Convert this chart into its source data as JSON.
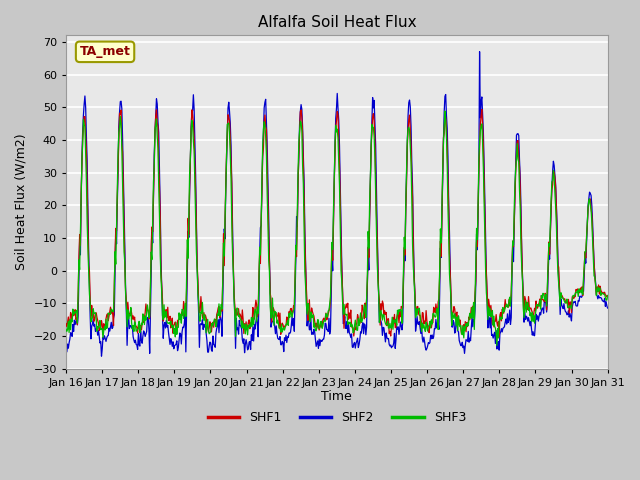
{
  "title": "Alfalfa Soil Heat Flux",
  "ylabel": "Soil Heat Flux (W/m2)",
  "xlabel": "Time",
  "ylim": [
    -30,
    72
  ],
  "yticks": [
    -30,
    -20,
    -10,
    0,
    10,
    20,
    30,
    40,
    50,
    60,
    70
  ],
  "colors": {
    "SHF1": "#cc0000",
    "SHF2": "#0000cc",
    "SHF3": "#00bb00"
  },
  "annotation_text": "TA_met",
  "n_days": 15,
  "start_day": 16,
  "points_per_day": 48,
  "figsize": [
    6.4,
    4.8
  ],
  "dpi": 100
}
